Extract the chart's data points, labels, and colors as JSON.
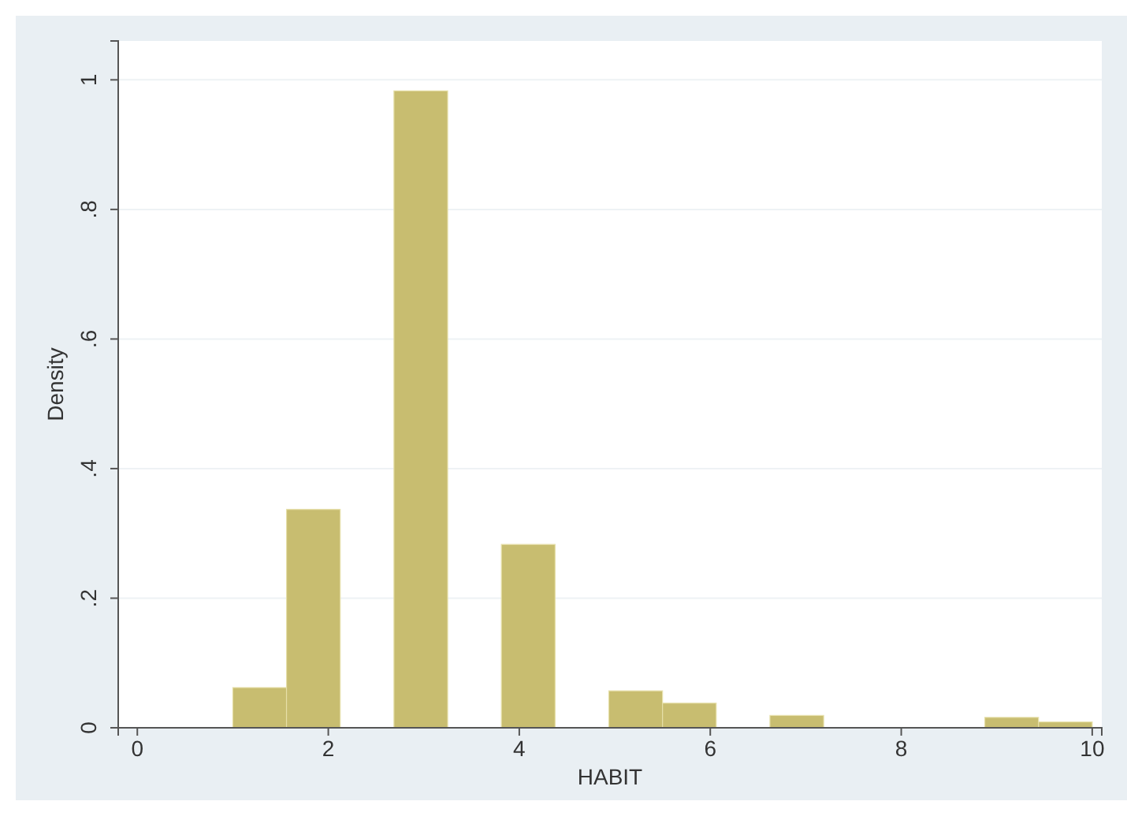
{
  "chart_data": {
    "type": "histogram",
    "xlabel": "HABIT",
    "ylabel": "Density",
    "bins": [
      1,
      1.5625,
      2.125,
      2.6875,
      3.25,
      3.8125,
      4.375,
      4.9375,
      5.5,
      6.0625,
      6.625,
      7.1875,
      7.75,
      8.3125,
      8.875,
      9.4375,
      10
    ],
    "values": [
      0.062,
      0.337,
      0,
      0.983,
      0,
      0.283,
      0,
      0.057,
      0.038,
      0,
      0.019,
      0,
      0,
      0,
      0.016,
      0.009
    ],
    "color": "#c8bd70",
    "xlim": [
      -0.2,
      10.1
    ],
    "xticks": [
      0,
      2,
      4,
      6,
      8,
      10
    ],
    "ylim": [
      0,
      1.06
    ],
    "yticks": [
      0,
      {
        "value": 0.2,
        "label": ".2"
      },
      {
        "value": 0.4,
        "label": ".4"
      },
      {
        "value": 0.6,
        "label": ".6"
      },
      {
        "value": 0.8,
        "label": ".8"
      },
      1
    ],
    "grid": "y"
  }
}
